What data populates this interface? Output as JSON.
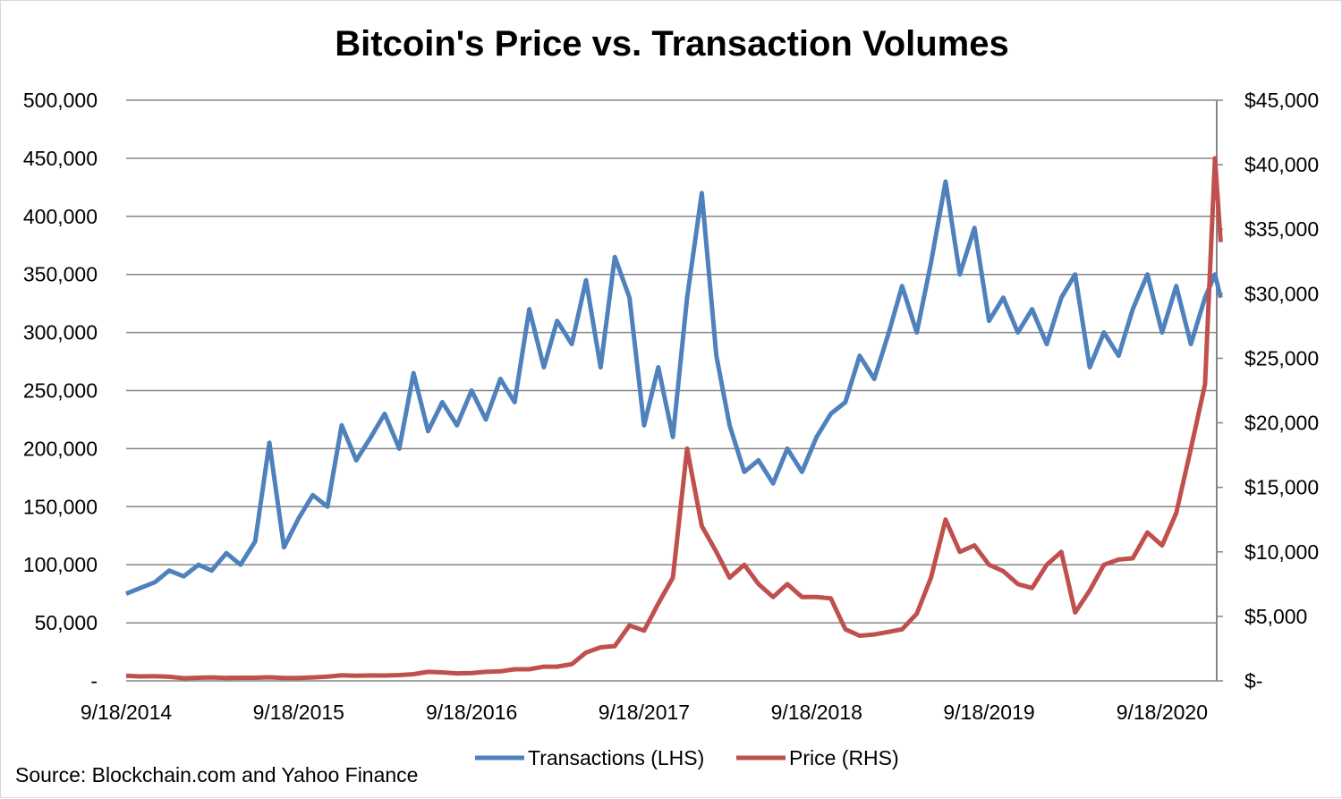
{
  "chart_data": {
    "type": "line",
    "title": "Bitcoin's Price vs. Transaction Volumes",
    "source": "Source: Blockchain.com and Yahoo Finance",
    "x_ticks": [
      "9/18/2014",
      "9/18/2015",
      "9/18/2016",
      "9/18/2017",
      "9/18/2018",
      "9/18/2019",
      "9/18/2020"
    ],
    "x_tick_dates": [
      "2014-09-18",
      "2015-09-18",
      "2016-09-18",
      "2017-09-18",
      "2018-09-18",
      "2019-09-18",
      "2020-09-18"
    ],
    "x_range": [
      "2014-09-18",
      "2021-01-20"
    ],
    "y_left": {
      "range": [
        0,
        500000
      ],
      "ticks": [
        "-",
        "50,000",
        "100,000",
        "150,000",
        "200,000",
        "250,000",
        "300,000",
        "350,000",
        "400,000",
        "450,000",
        "500,000"
      ]
    },
    "y_right": {
      "range": [
        0,
        45000
      ],
      "ticks": [
        "$-",
        "$5,000",
        "$10,000",
        "$15,000",
        "$20,000",
        "$25,000",
        "$30,000",
        "$35,000",
        "$40,000",
        "$45,000"
      ]
    },
    "grid": true,
    "legend_position": "bottom",
    "series": [
      {
        "name": "Transactions (LHS)",
        "axis": "left",
        "color": "#4F81BD",
        "x": [
          "2014-09-18",
          "2014-10-18",
          "2014-11-18",
          "2014-12-18",
          "2015-01-18",
          "2015-02-18",
          "2015-03-18",
          "2015-04-18",
          "2015-05-18",
          "2015-06-18",
          "2015-07-18",
          "2015-08-18",
          "2015-09-18",
          "2015-10-18",
          "2015-11-18",
          "2015-12-18",
          "2016-01-18",
          "2016-02-18",
          "2016-03-18",
          "2016-04-18",
          "2016-05-18",
          "2016-06-18",
          "2016-07-18",
          "2016-08-18",
          "2016-09-18",
          "2016-10-18",
          "2016-11-18",
          "2016-12-18",
          "2017-01-18",
          "2017-02-18",
          "2017-03-18",
          "2017-04-18",
          "2017-05-18",
          "2017-06-18",
          "2017-07-18",
          "2017-08-18",
          "2017-09-18",
          "2017-10-18",
          "2017-11-18",
          "2017-12-18",
          "2018-01-18",
          "2018-02-18",
          "2018-03-18",
          "2018-04-18",
          "2018-05-18",
          "2018-06-18",
          "2018-07-18",
          "2018-08-18",
          "2018-09-18",
          "2018-10-18",
          "2018-11-18",
          "2018-12-18",
          "2019-01-18",
          "2019-02-18",
          "2019-03-18",
          "2019-04-18",
          "2019-05-18",
          "2019-06-18",
          "2019-07-18",
          "2019-08-18",
          "2019-09-18",
          "2019-10-18",
          "2019-11-18",
          "2019-12-18",
          "2020-01-18",
          "2020-02-18",
          "2020-03-18",
          "2020-04-18",
          "2020-05-18",
          "2020-06-18",
          "2020-07-18",
          "2020-08-18",
          "2020-09-18",
          "2020-10-18",
          "2020-11-18",
          "2020-12-18",
          "2021-01-08",
          "2021-01-20"
        ],
        "values": [
          75000,
          80000,
          85000,
          95000,
          90000,
          100000,
          95000,
          110000,
          100000,
          120000,
          205000,
          115000,
          140000,
          160000,
          150000,
          220000,
          190000,
          210000,
          230000,
          200000,
          265000,
          215000,
          240000,
          220000,
          250000,
          225000,
          260000,
          240000,
          320000,
          270000,
          310000,
          290000,
          345000,
          270000,
          365000,
          330000,
          220000,
          270000,
          210000,
          330000,
          420000,
          280000,
          220000,
          180000,
          190000,
          170000,
          200000,
          180000,
          210000,
          230000,
          240000,
          280000,
          260000,
          300000,
          340000,
          300000,
          360000,
          430000,
          350000,
          390000,
          310000,
          330000,
          300000,
          320000,
          290000,
          330000,
          350000,
          270000,
          300000,
          280000,
          320000,
          350000,
          300000,
          340000,
          290000,
          330000,
          350000,
          330000
        ]
      },
      {
        "name": "Price (RHS)",
        "axis": "right",
        "color": "#C0504D",
        "x": [
          "2014-09-18",
          "2014-10-18",
          "2014-11-18",
          "2014-12-18",
          "2015-01-18",
          "2015-02-18",
          "2015-03-18",
          "2015-04-18",
          "2015-05-18",
          "2015-06-18",
          "2015-07-18",
          "2015-08-18",
          "2015-09-18",
          "2015-10-18",
          "2015-11-18",
          "2015-12-18",
          "2016-01-18",
          "2016-02-18",
          "2016-03-18",
          "2016-04-18",
          "2016-05-18",
          "2016-06-18",
          "2016-07-18",
          "2016-08-18",
          "2016-09-18",
          "2016-10-18",
          "2016-11-18",
          "2016-12-18",
          "2017-01-18",
          "2017-02-18",
          "2017-03-18",
          "2017-04-18",
          "2017-05-18",
          "2017-06-18",
          "2017-07-18",
          "2017-08-18",
          "2017-09-18",
          "2017-10-18",
          "2017-11-18",
          "2017-12-18",
          "2018-01-18",
          "2018-02-18",
          "2018-03-18",
          "2018-04-18",
          "2018-05-18",
          "2018-06-18",
          "2018-07-18",
          "2018-08-18",
          "2018-09-18",
          "2018-10-18",
          "2018-11-18",
          "2018-12-18",
          "2019-01-18",
          "2019-02-18",
          "2019-03-18",
          "2019-04-18",
          "2019-05-18",
          "2019-06-18",
          "2019-07-18",
          "2019-08-18",
          "2019-09-18",
          "2019-10-18",
          "2019-11-18",
          "2019-12-18",
          "2020-01-18",
          "2020-02-18",
          "2020-03-18",
          "2020-04-18",
          "2020-05-18",
          "2020-06-18",
          "2020-07-18",
          "2020-08-18",
          "2020-09-18",
          "2020-10-18",
          "2020-11-18",
          "2020-12-18",
          "2021-01-08",
          "2021-01-20"
        ],
        "values": [
          400,
          350,
          370,
          320,
          210,
          240,
          270,
          230,
          240,
          245,
          280,
          230,
          230,
          270,
          330,
          430,
          400,
          420,
          415,
          450,
          520,
          700,
          660,
          580,
          610,
          700,
          740,
          900,
          900,
          1100,
          1100,
          1300,
          2200,
          2600,
          2700,
          4300,
          3900,
          6000,
          8000,
          18000,
          12000,
          10000,
          8000,
          9000,
          7500,
          6500,
          7500,
          6500,
          6500,
          6400,
          4000,
          3500,
          3600,
          3800,
          4000,
          5200,
          8000,
          12500,
          10000,
          10500,
          9000,
          8500,
          7500,
          7200,
          9000,
          10000,
          5300,
          7000,
          9000,
          9400,
          9500,
          11500,
          10500,
          13000,
          18000,
          23000,
          40500,
          34000
        ]
      }
    ]
  }
}
